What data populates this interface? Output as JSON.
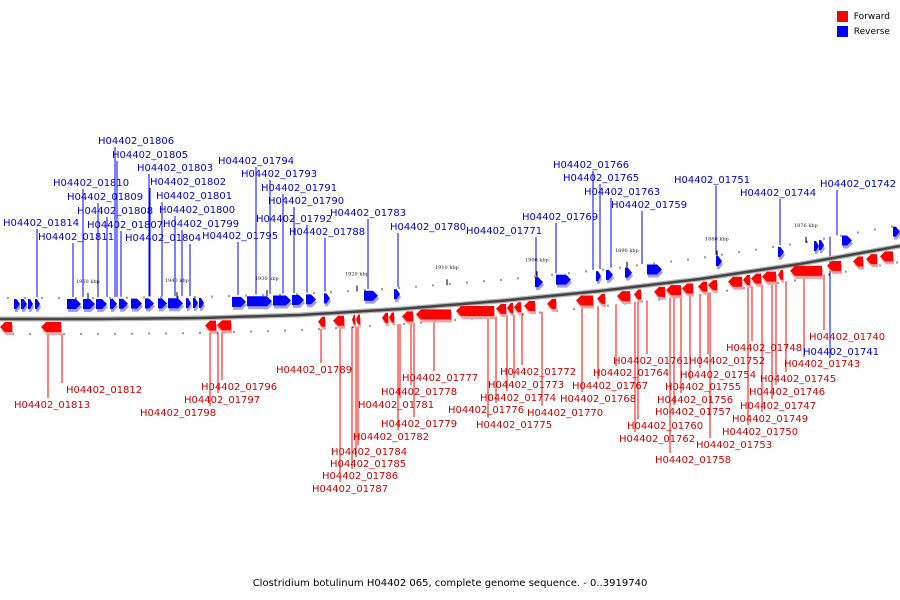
{
  "legend": {
    "forward_label": "Forward",
    "reverse_label": "Reverse",
    "forward_color": "#ff0000",
    "reverse_color": "#0000ff"
  },
  "caption": "Clostridium botulinum H04402 065, complete genome sequence. - 0..3919740",
  "ruler_labels": [
    "1950 kbp",
    "1940 kbp",
    "1930 kbp",
    "1920 kbp",
    "1910 kbp",
    "1900 kbp",
    "1890 kbp",
    "1880 kbp",
    "1876 kbp"
  ],
  "reverse_genes": [
    "H04402_01806",
    "H04402_01805",
    "H04402_01803",
    "H04402_01810",
    "H04402_01802",
    "H04402_01809",
    "H04402_01801",
    "H04402_01808",
    "H04402_01800",
    "H04402_01814",
    "H04402_01807",
    "H04402_01799",
    "H04402_01811",
    "H04402_01804",
    "H04402_01795",
    "H04402_01794",
    "H04402_01793",
    "H04402_01791",
    "H04402_01790",
    "H04402_01792",
    "H04402_01788",
    "H04402_01783",
    "H04402_01780",
    "H04402_01766",
    "H04402_01765",
    "H04402_01763",
    "H04402_01759",
    "H04402_01769",
    "H04402_01771",
    "H04402_01751",
    "H04402_01744",
    "H04402_01742",
    "H04402_01741"
  ],
  "forward_genes": [
    "H04402_01812",
    "H04402_01813",
    "H04402_01796",
    "H04402_01797",
    "H04402_01798",
    "H04402_01789",
    "H04402_01777",
    "H04402_01778",
    "H04402_01781",
    "H04402_01779",
    "H04402_01782",
    "H04402_01784",
    "H04402_01785",
    "H04402_01786",
    "H04402_01787",
    "H04402_01772",
    "H04402_01773",
    "H04402_01774",
    "H04402_01776",
    "H04402_01775",
    "H04402_01770",
    "H04402_01768",
    "H04402_01767",
    "H04402_01764",
    "H04402_01761",
    "H04402_01760",
    "H04402_01762",
    "H04402_01752",
    "H04402_01754",
    "H04402_01755",
    "H04402_01756",
    "H04402_01757",
    "H04402_01758",
    "H04402_01753",
    "H04402_01750",
    "H04402_01749",
    "H04402_01747",
    "H04402_01746",
    "H04402_01745",
    "H04402_01748",
    "H04402_01743",
    "H04402_01740"
  ]
}
